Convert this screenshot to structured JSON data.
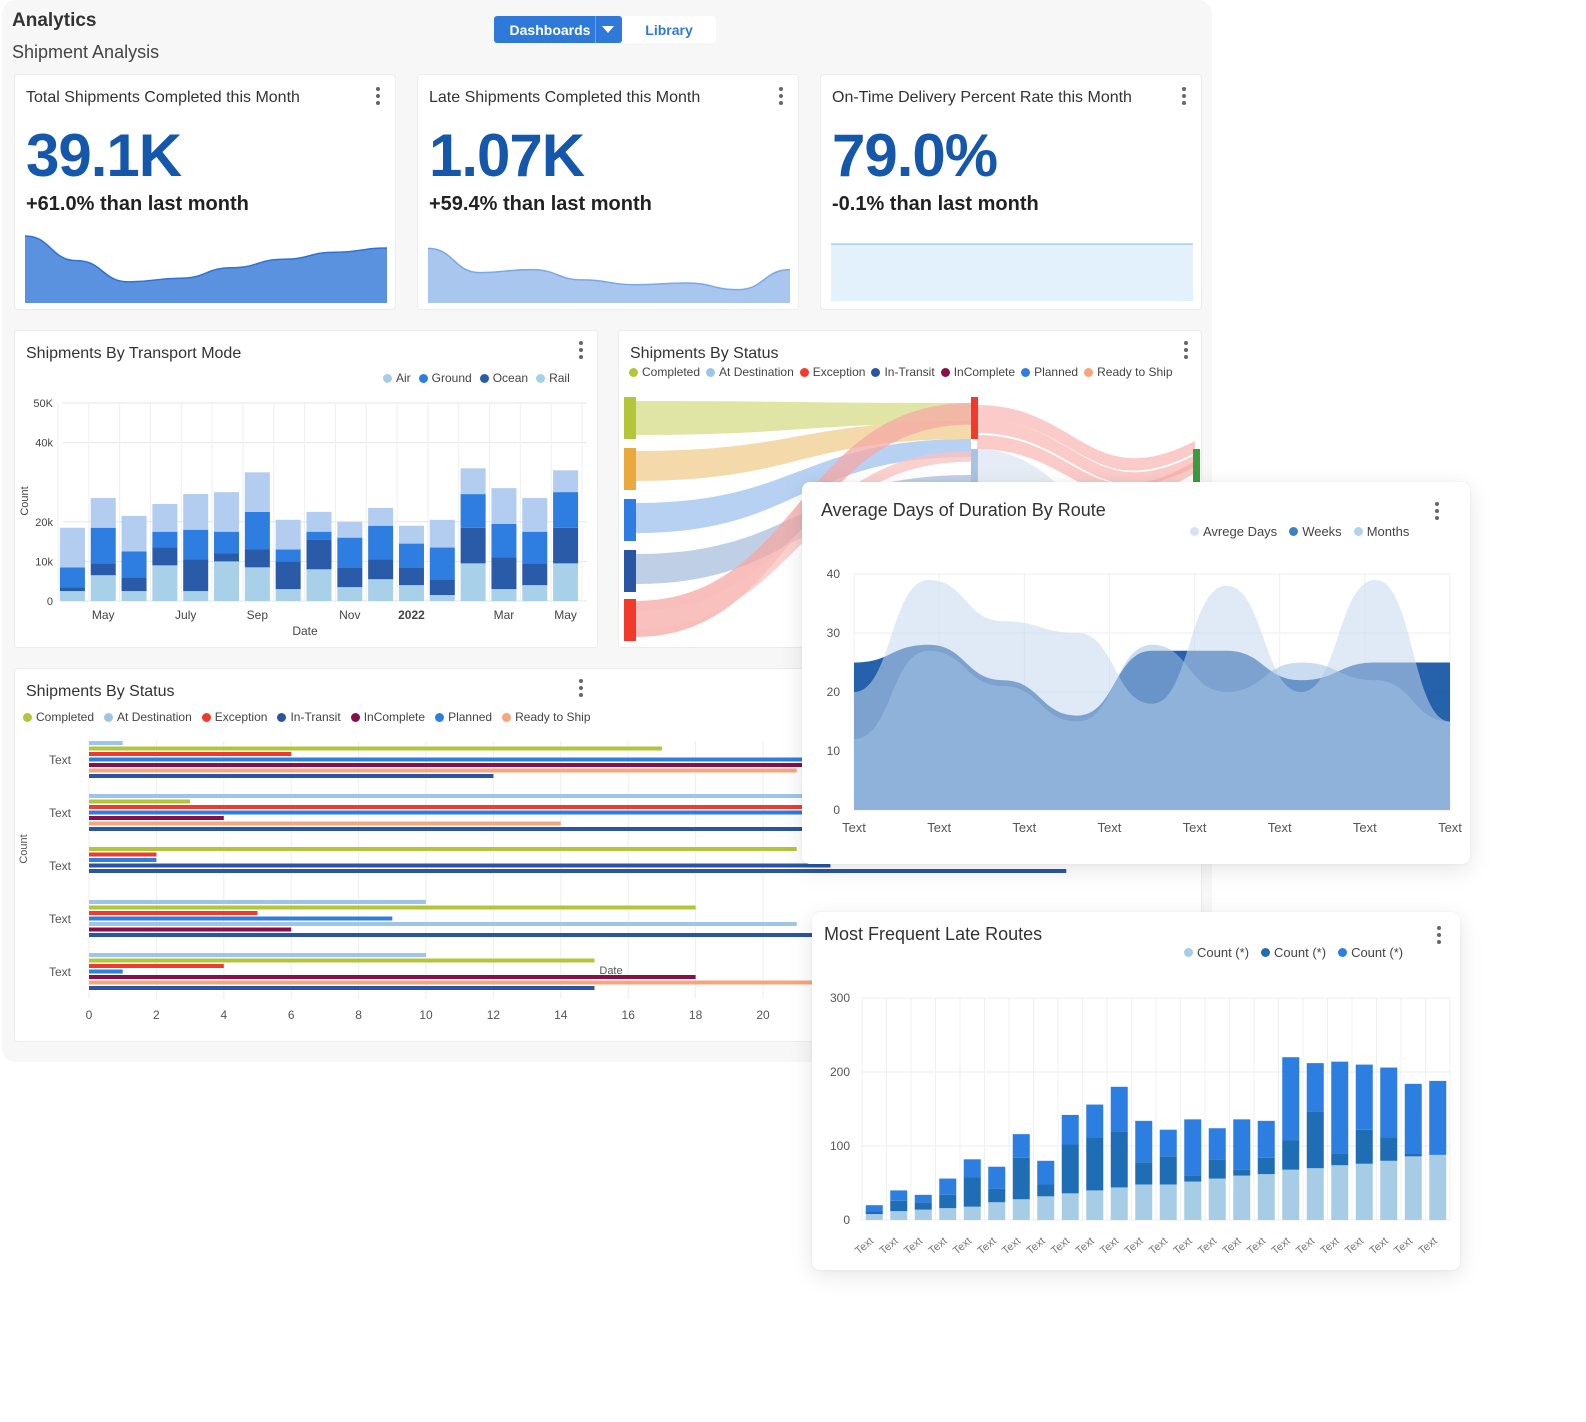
{
  "header": {
    "app_title": "Analytics",
    "page_title": "Shipment Analysis",
    "tabs": [
      {
        "label": "Dashboards",
        "active": true
      },
      {
        "label": "Library",
        "active": false
      }
    ]
  },
  "colors": {
    "accent": "#2f7ad9",
    "kpi": "#1457ab",
    "completed": "#b3c63a",
    "at_destination": "#9ec5e8",
    "exception": "#f23a2c",
    "in_transit": "#2a55a2",
    "incomplete": "#8a0e4a",
    "planned": "#2e7de0",
    "ready_to_ship": "#f6a57c"
  },
  "kpis": [
    {
      "title": "Total Shipments Completed this Month",
      "value": "39.1K",
      "delta": "+61.0% than last month",
      "trend": [
        0.95,
        0.6,
        0.3,
        0.35,
        0.5,
        0.62,
        0.72,
        0.78
      ]
    },
    {
      "title": "Late Shipments Completed this Month",
      "value": "1.07K",
      "delta": "+59.4% than last month",
      "trend": [
        0.9,
        0.5,
        0.55,
        0.38,
        0.3,
        0.33,
        0.22,
        0.55
      ]
    },
    {
      "title": "On-Time Delivery Percent Rate this Month",
      "value": "79.0%",
      "delta": "-0.1% than last month",
      "trend": [
        1,
        1,
        1,
        1,
        1,
        1,
        1,
        1
      ]
    }
  ],
  "chart_data": [
    {
      "id": "transport_mode",
      "type": "bar",
      "title": "Shipments By Transport Mode",
      "xlabel": "Date",
      "ylabel": "Count",
      "ylim": [
        0,
        50000
      ],
      "yticks": [
        "0",
        "10k",
        "20k",
        "40k",
        "50K"
      ],
      "ytick_values": [
        0,
        10000,
        20000,
        40000,
        50000
      ],
      "x_tick_labels": [
        "May",
        "July",
        "Sep",
        "Nov",
        "2022",
        "Mar",
        "May"
      ],
      "categories_count": 17,
      "legend": [
        "Air",
        "Ground",
        "Ocean",
        "Rail"
      ],
      "series": [
        {
          "name": "Rail",
          "color": "#a8d0e8",
          "values": [
            2500,
            6500,
            2500,
            9000,
            2500,
            10000,
            8500,
            3000,
            8000,
            3500,
            5500,
            4000,
            1500,
            9500,
            3000,
            4000,
            9500
          ]
        },
        {
          "name": "Ocean",
          "color": "#2a5ba8",
          "values": [
            1000,
            3000,
            3500,
            4500,
            8000,
            2000,
            4500,
            7000,
            7500,
            5000,
            5000,
            4500,
            4000,
            9000,
            8000,
            5500,
            9000
          ]
        },
        {
          "name": "Ground",
          "color": "#2e7de0",
          "values": [
            5000,
            9000,
            6500,
            4000,
            7500,
            5500,
            9500,
            3000,
            2000,
            7500,
            8500,
            6000,
            8000,
            8500,
            8500,
            8000,
            9000
          ]
        },
        {
          "name": "Air",
          "color": "#b2cdef",
          "values": [
            10000,
            7500,
            9000,
            7000,
            9000,
            10000,
            10000,
            7500,
            5000,
            4000,
            4500,
            4500,
            7000,
            6500,
            9000,
            8500,
            5500
          ]
        }
      ]
    },
    {
      "id": "status_sankey",
      "type": "sankey",
      "title": "Shipments By Status",
      "legend": [
        "Completed",
        "At Destination",
        "Exception",
        "In-Transit",
        "InComplete",
        "Planned",
        "Ready to Ship"
      ]
    },
    {
      "id": "status_bars",
      "type": "bar",
      "orientation": "horizontal",
      "title": "Shipments By Status",
      "xlabel": "Date",
      "ylabel": "Count",
      "xlim": [
        0,
        22
      ],
      "xticks": [
        0,
        2,
        4,
        6,
        8,
        10,
        12,
        14,
        16,
        18,
        20
      ],
      "categories": [
        "Text",
        "Text",
        "Text",
        "Text",
        "Text"
      ],
      "legend": [
        "Completed",
        "At Destination",
        "Exception",
        "In-Transit",
        "InComplete",
        "Planned",
        "Ready to Ship"
      ],
      "groups": [
        [
          {
            "s": "At Destination",
            "v": 1
          },
          {
            "s": "Completed",
            "v": 17
          },
          {
            "s": "Exception",
            "v": 6
          },
          {
            "s": "Planned",
            "v": 22
          },
          {
            "s": "InComplete",
            "v": 22
          },
          {
            "s": "Ready to Ship",
            "v": 21
          },
          {
            "s": "In-Transit",
            "v": 12
          }
        ],
        [
          {
            "s": "At Destination",
            "v": 22
          },
          {
            "s": "Completed",
            "v": 3
          },
          {
            "s": "Exception",
            "v": 22
          },
          {
            "s": "Planned",
            "v": 22
          },
          {
            "s": "InComplete",
            "v": 4
          },
          {
            "s": "Ready to Ship",
            "v": 14
          },
          {
            "s": "In-Transit",
            "v": 22
          }
        ],
        [
          {
            "s": "Completed",
            "v": 21
          },
          {
            "s": "Exception",
            "v": 2
          },
          {
            "s": "Planned",
            "v": 2
          },
          {
            "s": "In-Transit",
            "v": 22
          },
          {
            "s": "In-Transit",
            "v": 29
          }
        ],
        [
          {
            "s": "At Destination",
            "v": 10
          },
          {
            "s": "Completed",
            "v": 18
          },
          {
            "s": "Exception",
            "v": 5
          },
          {
            "s": "Planned",
            "v": 9
          },
          {
            "s": "At Destination",
            "v": 21
          },
          {
            "s": "InComplete",
            "v": 6
          },
          {
            "s": "In-Transit",
            "v": 22
          }
        ],
        [
          {
            "s": "At Destination",
            "v": 10
          },
          {
            "s": "Completed",
            "v": 15
          },
          {
            "s": "Exception",
            "v": 4
          },
          {
            "s": "Planned",
            "v": 1
          },
          {
            "s": "InComplete",
            "v": 18
          },
          {
            "s": "Ready to Ship",
            "v": 22
          },
          {
            "s": "In-Transit",
            "v": 15
          }
        ]
      ]
    },
    {
      "id": "duration_route",
      "type": "area",
      "title": "Average Days of Duration By Route",
      "ylim": [
        0,
        40
      ],
      "yticks": [
        0,
        10,
        20,
        30,
        40
      ],
      "x_tick_labels": [
        "Text",
        "Text",
        "Text",
        "Text",
        "Text",
        "Text",
        "Text",
        "Text"
      ],
      "legend": [
        "Avrege Days",
        "Weeks",
        "Months"
      ],
      "series": [
        {
          "name": "Weeks",
          "color": "#1a58a8",
          "values": [
            25,
            28,
            22,
            16,
            27,
            27,
            22,
            25,
            25
          ]
        },
        {
          "name": "Avrege Days",
          "color": "#c5d8ee",
          "values": [
            20,
            39,
            32,
            30,
            18,
            38,
            20,
            39,
            15
          ]
        },
        {
          "name": "Months",
          "color": "#9fbfe2",
          "values": [
            12,
            27,
            21,
            15,
            28,
            20,
            25,
            22,
            15
          ]
        }
      ]
    },
    {
      "id": "late_routes",
      "type": "bar",
      "title": "Most Frequent Late Routes",
      "ylim": [
        0,
        300
      ],
      "yticks": [
        0,
        100,
        200,
        300
      ],
      "categories": [
        "Text",
        "Text",
        "Text",
        "Text",
        "Text",
        "Text",
        "Text",
        "Text",
        "Text",
        "Text",
        "Text",
        "Text",
        "Text",
        "Text",
        "Text",
        "Text",
        "Text",
        "Text",
        "Text",
        "Text",
        "Text",
        "Text",
        "Text",
        "Text"
      ],
      "legend": [
        "Count (*)",
        "Count (*)",
        "Count (*)"
      ],
      "series": [
        {
          "name": "Count (*)",
          "color": "#a7cde6",
          "values": [
            8,
            12,
            14,
            16,
            18,
            24,
            28,
            32,
            36,
            40,
            44,
            48,
            48,
            52,
            56,
            60,
            62,
            68,
            70,
            74,
            76,
            80,
            86,
            88
          ]
        },
        {
          "name": "Count (*)",
          "color": "#1f6db5",
          "values": [
            4,
            14,
            10,
            18,
            40,
            18,
            56,
            16,
            66,
            72,
            76,
            30,
            38,
            8,
            26,
            8,
            22,
            40,
            76,
            16,
            46,
            32,
            4,
            0
          ]
        },
        {
          "name": "Count (*)",
          "color": "#2c7ee0",
          "values": [
            8,
            14,
            10,
            22,
            24,
            30,
            32,
            32,
            40,
            44,
            60,
            56,
            36,
            76,
            42,
            68,
            50,
            112,
            66,
            124,
            88,
            94,
            94,
            100
          ]
        }
      ]
    }
  ]
}
